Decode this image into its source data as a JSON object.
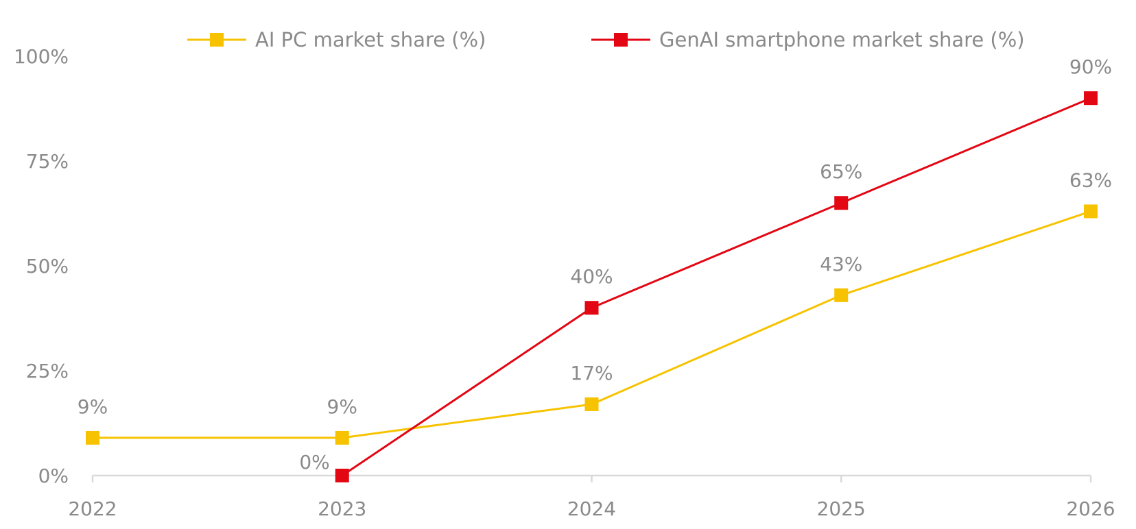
{
  "chart_data": {
    "type": "line",
    "title": "",
    "xlabel": "",
    "ylabel": "",
    "categories": [
      "2022",
      "2023",
      "2024",
      "2025",
      "2026"
    ],
    "ylim": [
      0,
      100
    ],
    "y_ticks": [
      "0%",
      "25%",
      "50%",
      "75%",
      "100%"
    ],
    "y_tick_values": [
      0,
      25,
      50,
      75,
      100
    ],
    "grid": false,
    "legend_position": "top",
    "series": [
      {
        "name": "AI PC market share (%)",
        "color": "#F7C300",
        "values": [
          9,
          9,
          17,
          43,
          63
        ],
        "labels": [
          "9%",
          "9%",
          "17%",
          "43%",
          "63%"
        ]
      },
      {
        "name": "GenAI smartphone market share (%)",
        "color": "#E30613",
        "values": [
          null,
          0,
          40,
          65,
          90
        ],
        "labels": [
          null,
          "0%",
          "40%",
          "65%",
          "90%"
        ]
      }
    ]
  }
}
